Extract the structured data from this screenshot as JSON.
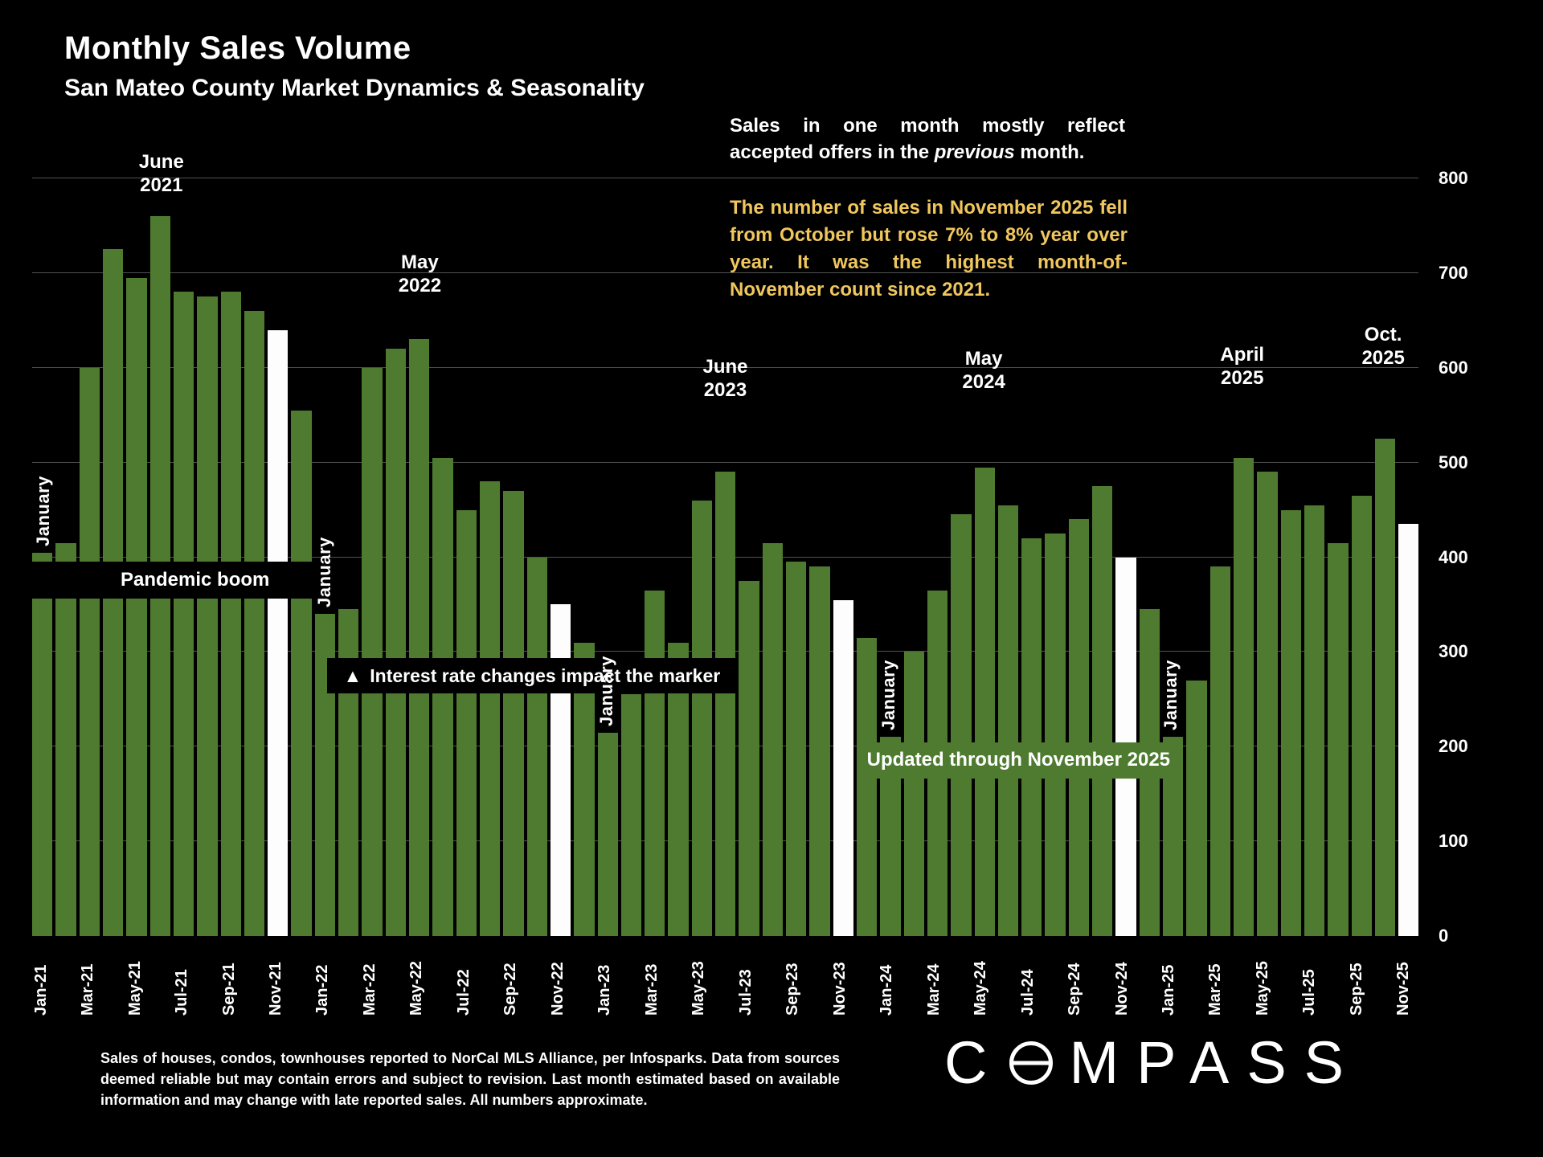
{
  "header": {
    "title": "Monthly Sales Volume",
    "subtitle": "San Mateo County Market Dynamics & Seasonality"
  },
  "notes": {
    "white_1": "Sales in one month mostly reflect accepted offers in the ",
    "white_italic": "previous",
    "white_2": " month.",
    "yellow": "The number of sales in November 2025 fell from October but rose 7% to 8% year over year. It was the highest month-of-November count since 2021."
  },
  "annotations": {
    "pandemic": "Pandemic boom",
    "interest_icon": "▲",
    "interest_text": "Interest rate changes impact the marker",
    "updated": "Updated through November 2025"
  },
  "chart_data": {
    "type": "bar",
    "title": "Monthly Sales Volume",
    "xlabel": "",
    "ylabel": "",
    "ylim": [
      0,
      800
    ],
    "grid_step": 100,
    "y_ticks": [
      0,
      100,
      200,
      300,
      400,
      500,
      600,
      700,
      800
    ],
    "bar_color": "#4f7b31",
    "highlight_color": "#fdfdfd",
    "months": [
      "Jan-21",
      "Feb-21",
      "Mar-21",
      "Apr-21",
      "May-21",
      "Jun-21",
      "Jul-21",
      "Aug-21",
      "Sep-21",
      "Oct-21",
      "Nov-21",
      "Dec-21",
      "Jan-22",
      "Feb-22",
      "Mar-22",
      "Apr-22",
      "May-22",
      "Jun-22",
      "Jul-22",
      "Aug-22",
      "Sep-22",
      "Oct-22",
      "Nov-22",
      "Dec-22",
      "Jan-23",
      "Feb-23",
      "Mar-23",
      "Apr-23",
      "May-23",
      "Jun-23",
      "Jul-23",
      "Aug-23",
      "Sep-23",
      "Oct-23",
      "Nov-23",
      "Dec-23",
      "Jan-24",
      "Feb-24",
      "Mar-24",
      "Apr-24",
      "May-24",
      "Jun-24",
      "Jul-24",
      "Aug-24",
      "Sep-24",
      "Oct-24",
      "Nov-24",
      "Dec-24",
      "Jan-25",
      "Feb-25",
      "Mar-25",
      "Apr-25",
      "May-25",
      "Jun-25",
      "Jul-25",
      "Aug-25",
      "Sep-25",
      "Oct-25",
      "Nov-25"
    ],
    "values": [
      405,
      415,
      600,
      725,
      695,
      760,
      680,
      675,
      680,
      660,
      640,
      555,
      340,
      345,
      600,
      620,
      630,
      505,
      450,
      480,
      470,
      400,
      350,
      310,
      215,
      255,
      365,
      310,
      460,
      490,
      375,
      415,
      395,
      390,
      355,
      315,
      210,
      300,
      365,
      445,
      495,
      455,
      420,
      425,
      440,
      475,
      400,
      345,
      210,
      270,
      390,
      505,
      490,
      450,
      455,
      415,
      465,
      525,
      435
    ],
    "highlight_months": [
      "Nov-21",
      "Nov-22",
      "Nov-23",
      "Nov-24",
      "Nov-25"
    ],
    "january_text": "January",
    "january_labels": [
      "Jan-21",
      "Jan-22",
      "Jan-23",
      "Jan-24",
      "Jan-25"
    ],
    "peak_labels": [
      {
        "month": "Jun-21",
        "lines": [
          "June",
          "2021"
        ],
        "gap": 24
      },
      {
        "month": "May-22",
        "lines": [
          "May",
          "2022"
        ],
        "gap": 52
      },
      {
        "month": "Jun-23",
        "lines": [
          "June",
          "2023"
        ],
        "gap": 87
      },
      {
        "month": "May-24",
        "lines": [
          "May",
          "2024"
        ],
        "gap": 92
      },
      {
        "month": "Apr-25",
        "lines": [
          "April",
          "2025"
        ],
        "gap": 85
      },
      {
        "month": "Oct-25",
        "lines": [
          "Oct.",
          "2025"
        ],
        "gap": 86
      }
    ],
    "legend": "none",
    "grid": "horizontal"
  },
  "footer": {
    "disclaimer": "Sales of houses, condos, townhouses reported to NorCal MLS Alliance, per Infosparks. Data from sources deemed reliable but may contain errors and subject to revision. Last month estimated based on available information and may change with late reported sales. All numbers approximate.",
    "logo_c": "C",
    "logo_rest": "MPASS"
  }
}
